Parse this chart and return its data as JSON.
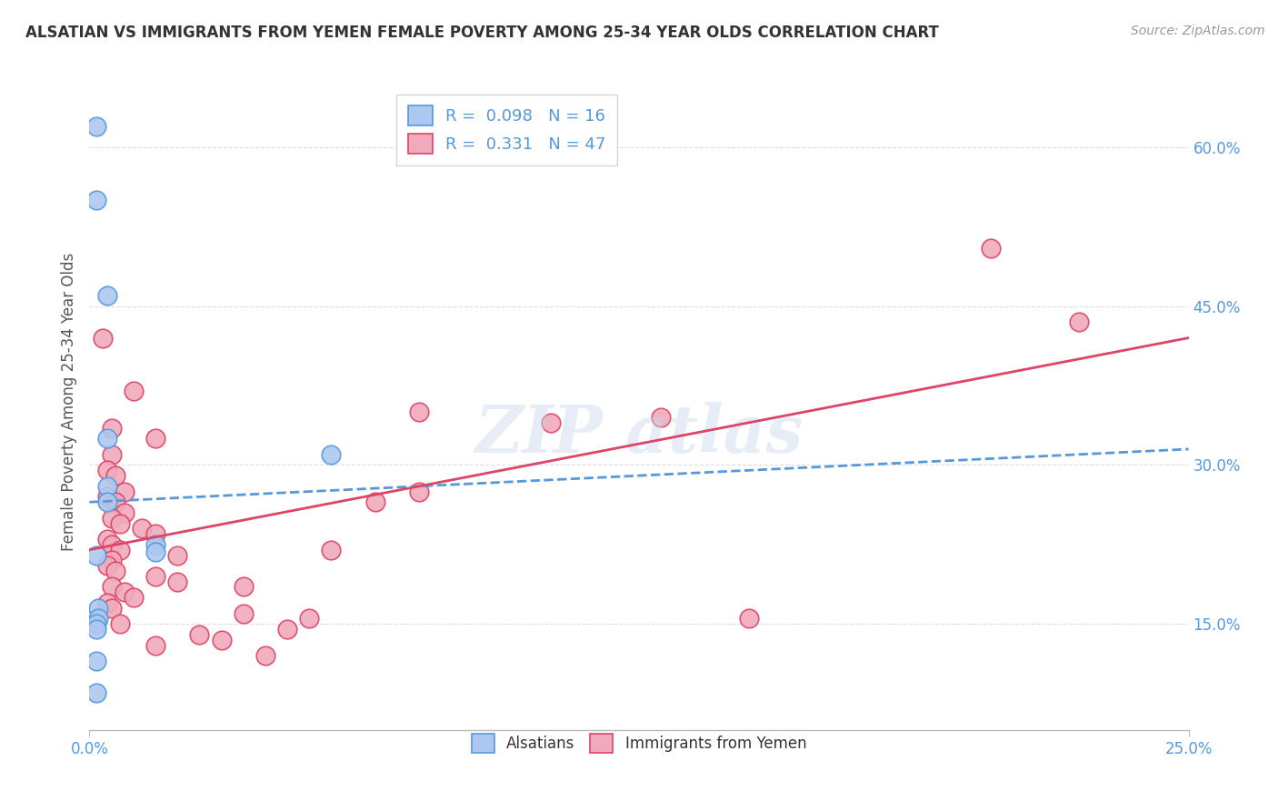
{
  "title": "ALSATIAN VS IMMIGRANTS FROM YEMEN FEMALE POVERTY AMONG 25-34 YEAR OLDS CORRELATION CHART",
  "source": "Source: ZipAtlas.com",
  "ylabel": "Female Poverty Among 25-34 Year Olds",
  "xlim": [
    0.0,
    25.0
  ],
  "ylim": [
    5.0,
    67.0
  ],
  "ytick_positions": [
    15.0,
    30.0,
    45.0,
    60.0
  ],
  "yticklabels": [
    "15.0%",
    "30.0%",
    "45.0%",
    "60.0%"
  ],
  "xtick_label_left": "0.0%",
  "xtick_label_right": "25.0%",
  "legend_R1": "0.098",
  "legend_N1": "16",
  "legend_R2": "0.331",
  "legend_N2": "47",
  "blue_color": "#adc8f0",
  "pink_color": "#f0aabb",
  "blue_line_color": "#5599dd",
  "pink_line_color": "#dd4466",
  "blue_trend": [
    0.0,
    25.0,
    26.5,
    31.5
  ],
  "pink_trend": [
    0.0,
    25.0,
    22.0,
    42.0
  ],
  "watermark_text": "ZIP atlas",
  "blue_dots": [
    [
      0.15,
      62.0
    ],
    [
      0.15,
      55.0
    ],
    [
      0.4,
      46.0
    ],
    [
      0.4,
      32.5
    ],
    [
      0.4,
      28.0
    ],
    [
      0.4,
      26.5
    ],
    [
      5.5,
      31.0
    ],
    [
      0.15,
      21.5
    ],
    [
      0.2,
      16.5
    ],
    [
      0.2,
      15.5
    ],
    [
      0.15,
      15.0
    ],
    [
      0.15,
      14.5
    ],
    [
      1.5,
      22.5
    ],
    [
      1.5,
      21.8
    ],
    [
      0.15,
      11.5
    ],
    [
      0.15,
      8.5
    ]
  ],
  "pink_dots": [
    [
      0.3,
      42.0
    ],
    [
      1.0,
      37.0
    ],
    [
      0.5,
      33.5
    ],
    [
      1.5,
      32.5
    ],
    [
      0.5,
      31.0
    ],
    [
      0.4,
      29.5
    ],
    [
      0.6,
      29.0
    ],
    [
      0.8,
      27.5
    ],
    [
      0.4,
      27.0
    ],
    [
      0.6,
      26.5
    ],
    [
      0.8,
      25.5
    ],
    [
      0.5,
      25.0
    ],
    [
      0.7,
      24.5
    ],
    [
      1.2,
      24.0
    ],
    [
      1.5,
      23.5
    ],
    [
      0.4,
      23.0
    ],
    [
      0.5,
      22.5
    ],
    [
      0.7,
      22.0
    ],
    [
      2.0,
      21.5
    ],
    [
      0.5,
      21.0
    ],
    [
      0.4,
      20.5
    ],
    [
      0.6,
      20.0
    ],
    [
      1.5,
      19.5
    ],
    [
      2.0,
      19.0
    ],
    [
      0.5,
      18.5
    ],
    [
      0.8,
      18.0
    ],
    [
      1.0,
      17.5
    ],
    [
      0.4,
      17.0
    ],
    [
      0.5,
      16.5
    ],
    [
      3.5,
      16.0
    ],
    [
      5.0,
      15.5
    ],
    [
      0.7,
      15.0
    ],
    [
      4.5,
      14.5
    ],
    [
      2.5,
      14.0
    ],
    [
      3.0,
      13.5
    ],
    [
      3.5,
      18.5
    ],
    [
      5.5,
      22.0
    ],
    [
      1.5,
      13.0
    ],
    [
      4.0,
      12.0
    ],
    [
      7.5,
      27.5
    ],
    [
      7.5,
      35.0
    ],
    [
      10.5,
      34.0
    ],
    [
      13.0,
      34.5
    ],
    [
      20.5,
      50.5
    ],
    [
      15.0,
      15.5
    ],
    [
      22.5,
      43.5
    ],
    [
      6.5,
      26.5
    ]
  ],
  "background_color": "#ffffff",
  "grid_color": "#dddddd",
  "tick_color": "#5599dd"
}
